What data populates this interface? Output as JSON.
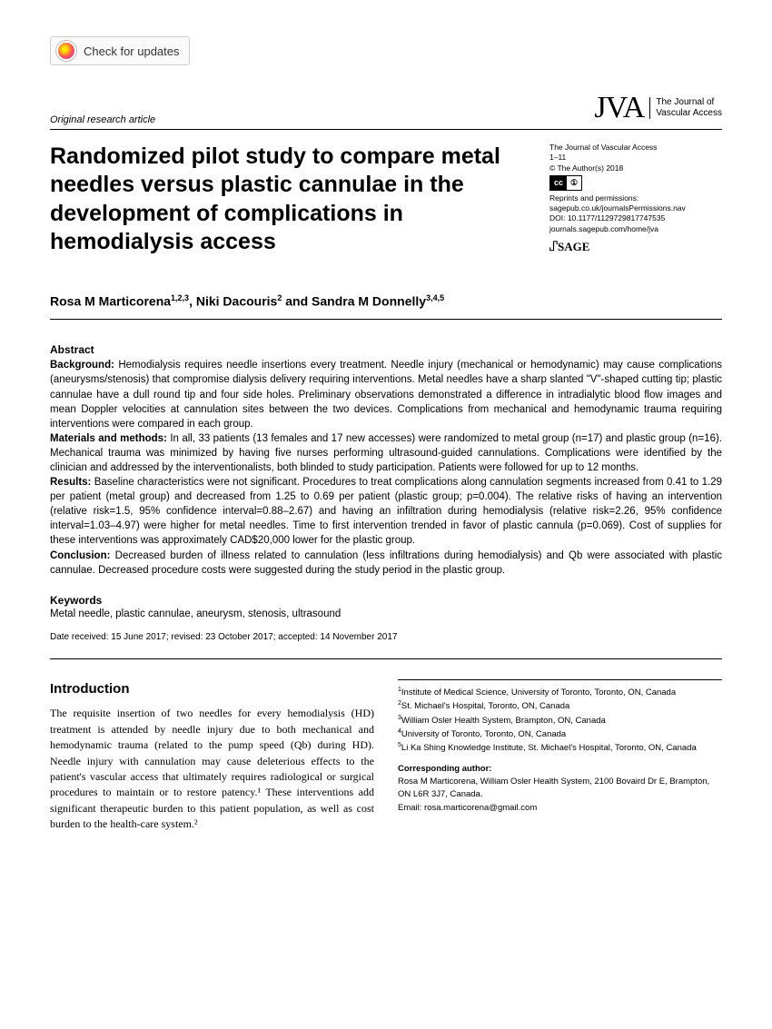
{
  "updates_badge": "Check for updates",
  "article_type": "Original research article",
  "journal_logo": {
    "mark": "JVA",
    "line1": "The Journal of",
    "line2": "Vascular Access"
  },
  "meta": {
    "journal": "The Journal of Vascular Access",
    "pages": "1–11",
    "copyright": "© The Author(s) 2018",
    "reprints_label": "Reprints and permissions:",
    "reprints_link": "sagepub.co.uk/journalsPermissions.nav",
    "doi": "DOI: 10.1177/1129729817747535",
    "journal_url": "journals.sagepub.com/home/jva",
    "sage": "SAGE"
  },
  "title": "Randomized pilot study to compare metal needles versus plastic cannulae in the development of complications in hemodialysis access",
  "authors_html": "Rosa M Marticorena<sup>1,2,3</sup>, Niki Dacouris<sup>2</sup> and Sandra M Donnelly<sup>3,4,5</sup>",
  "abstract": {
    "label": "Abstract",
    "background_label": "Background:",
    "background": "Hemodialysis requires needle insertions every treatment. Needle injury (mechanical or hemodynamic) may cause complications (aneurysms/stenosis) that compromise dialysis delivery requiring interventions. Metal needles have a sharp slanted \"V\"-shaped cutting tip; plastic cannulae have a dull round tip and four side holes. Preliminary observations demonstrated a difference in intradialytic blood flow images and mean Doppler velocities at cannulation sites between the two devices. Complications from mechanical and hemodynamic trauma requiring interventions were compared in each group.",
    "methods_label": "Materials and methods:",
    "methods": "In all, 33 patients (13 females and 17 new accesses) were randomized to metal group (n=17) and plastic group (n=16). Mechanical trauma was minimized by having five nurses performing ultrasound-guided cannulations. Complications were identified by the clinician and addressed by the interventionalists, both blinded to study participation. Patients were followed for up to 12 months.",
    "results_label": "Results:",
    "results": "Baseline characteristics were not significant. Procedures to treat complications along cannulation segments increased from 0.41 to 1.29 per patient (metal group) and decreased from 1.25 to 0.69 per patient (plastic group; p=0.004). The relative risks of having an intervention (relative risk=1.5, 95% confidence interval=0.88–2.67) and having an infiltration during hemodialysis (relative risk=2.26, 95% confidence interval=1.03–4.97) were higher for metal needles. Time to first intervention trended in favor of plastic cannula (p=0.069). Cost of supplies for these interventions was approximately CAD$20,000 lower for the plastic group.",
    "conclusion_label": "Conclusion:",
    "conclusion": "Decreased burden of illness related to cannulation (less infiltrations during hemodialysis) and Qb were associated with plastic cannulae. Decreased procedure costs were suggested during the study period in the plastic group."
  },
  "keywords": {
    "label": "Keywords",
    "text": "Metal needle, plastic cannulae, aneurysm, stenosis, ultrasound"
  },
  "dates": "Date received: 15 June 2017; revised: 23 October 2017; accepted: 14 November 2017",
  "introduction": {
    "heading": "Introduction",
    "body": "The requisite insertion of two needles for every hemodialysis (HD) treatment is attended by needle injury due to both mechanical and hemodynamic trauma (related to the pump speed (Qb) during HD). Needle injury with cannulation may cause deleterious effects to the patient's vascular access that ultimately requires radiological or surgical procedures to maintain or to restore patency.¹ These interventions add significant therapeutic burden to this patient population, as well as cost burden to the health-care system.²"
  },
  "affiliations": [
    "Institute of Medical Science, University of Toronto, Toronto, ON, Canada",
    "St. Michael's Hospital, Toronto, ON, Canada",
    "William Osler Health System, Brampton, ON, Canada",
    "University of Toronto, Toronto, ON, Canada",
    "Li Ka Shing Knowledge Institute, St. Michael's Hospital, Toronto, ON, Canada"
  ],
  "corresponding": {
    "label": "Corresponding author:",
    "text": "Rosa M Marticorena, William Osler Health System, 2100 Bovaird Dr E, Brampton, ON L6R 3J7, Canada.",
    "email": "Email: rosa.marticorena@gmail.com"
  }
}
